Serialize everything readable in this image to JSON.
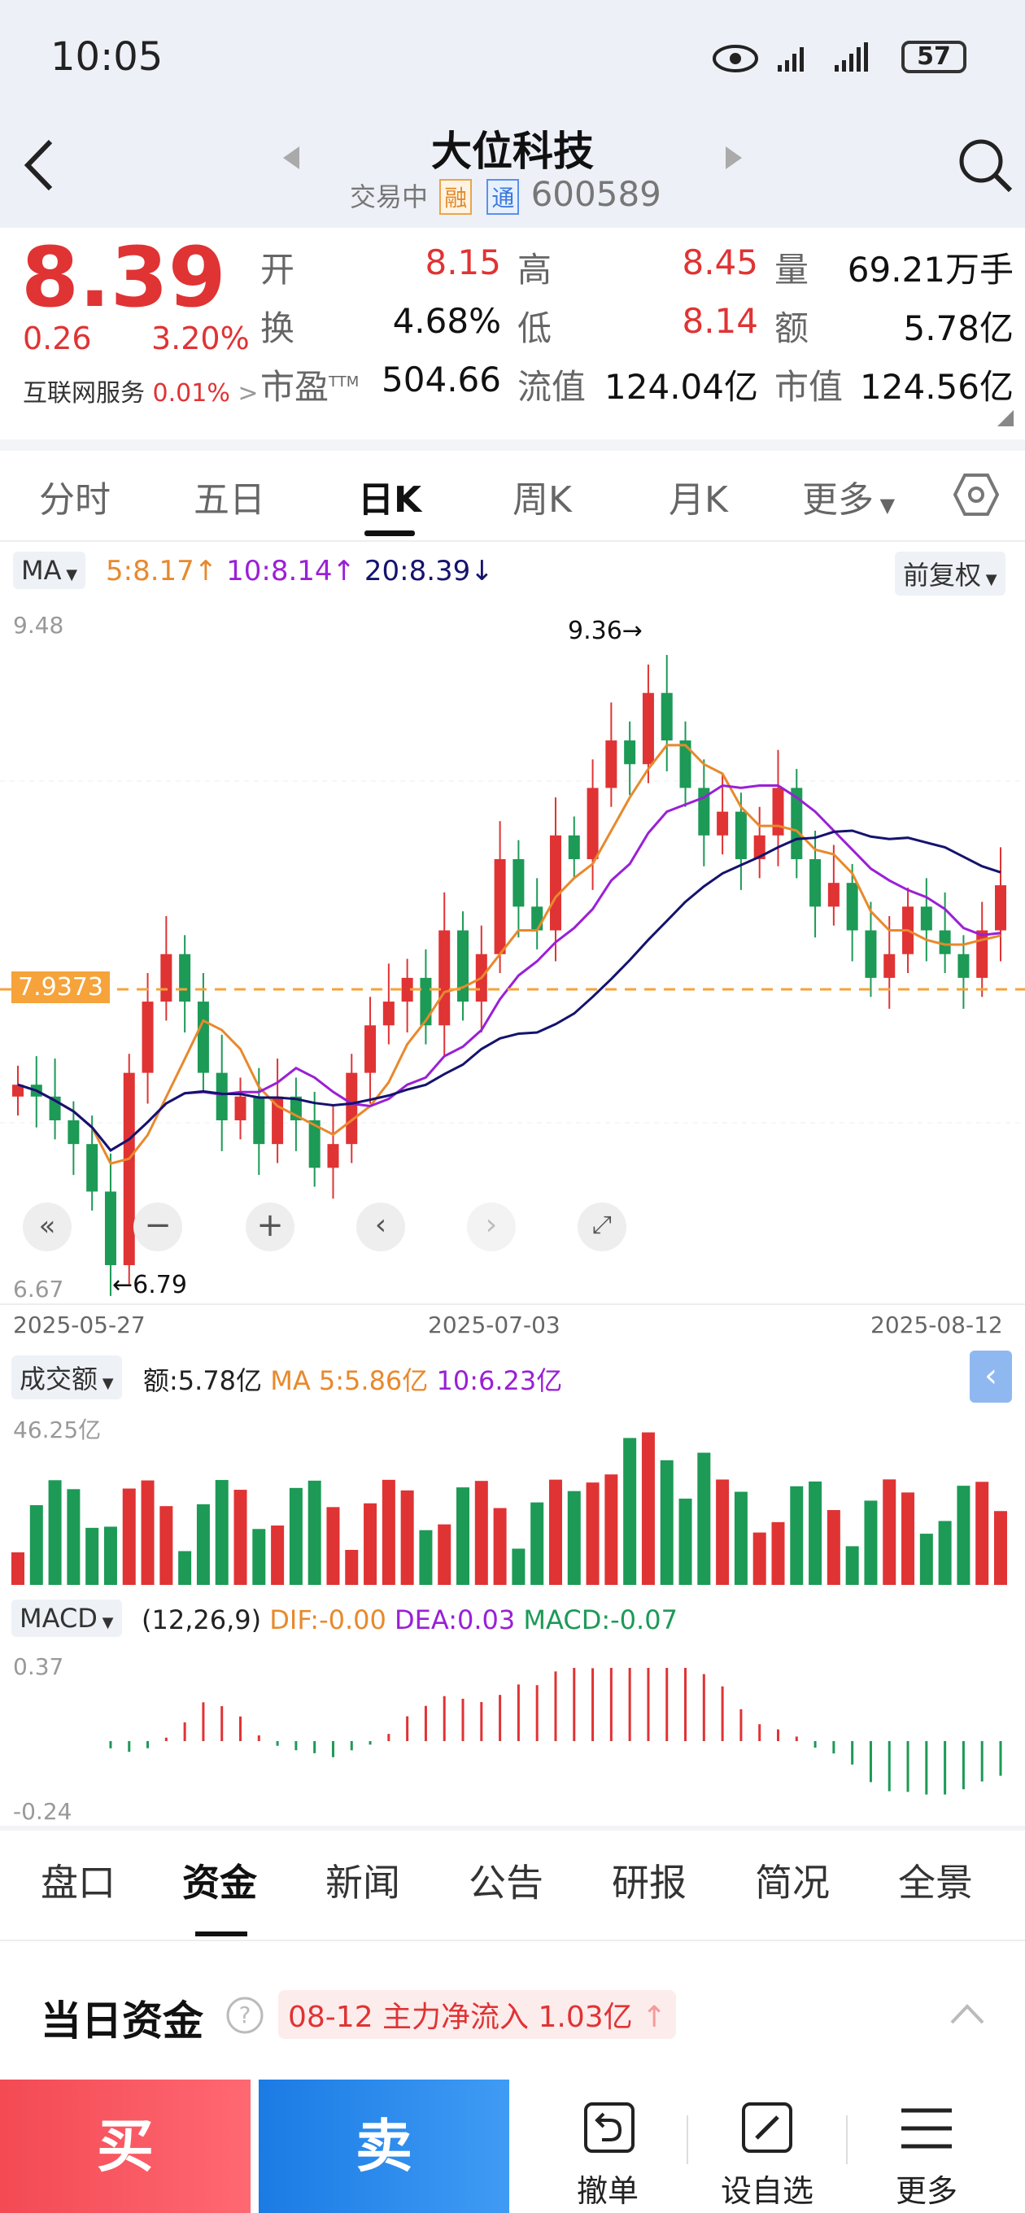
{
  "status_bar": {
    "time": "10:05",
    "battery": "57"
  },
  "header": {
    "title": "大位科技",
    "trade_status": "交易中",
    "tag_rong": "融",
    "tag_tong": "通",
    "code": "600589"
  },
  "quote": {
    "price": "8.39",
    "change": "0.26",
    "change_pct": "3.20%",
    "sector": "互联网服务",
    "sector_pct": "0.01%",
    "fields": {
      "open_label": "开",
      "open": "8.15",
      "high_label": "高",
      "high": "8.45",
      "vol_label": "量",
      "vol": "69.21万手",
      "turnover_label": "换",
      "turnover": "4.68%",
      "low_label": "低",
      "low": "8.14",
      "amount_label": "额",
      "amount": "5.78亿",
      "pe_label": "市盈",
      "pe_sup": "TTM",
      "pe": "504.66",
      "float_label": "流值",
      "float": "124.04亿",
      "mcap_label": "市值",
      "mcap": "124.56亿"
    }
  },
  "period_tabs": [
    "分时",
    "五日",
    "日K",
    "周K",
    "月K",
    "更多"
  ],
  "ma_bar": {
    "selector": "MA",
    "ma5": "5:8.17",
    "ma10": "10:8.14",
    "ma20": "20:8.39",
    "adjust": "前复权"
  },
  "kline": {
    "y_top": "9.48",
    "y_bottom": "6.67",
    "current_line": "7.9373",
    "high_marker": "9.36",
    "low_marker": "6.79",
    "date_start": "2025-05-27",
    "date_mid": "2025-07-03",
    "date_end": "2025-08-12"
  },
  "volume": {
    "selector": "成交额",
    "amount": "额:5.78亿",
    "ma5": "MA 5:5.86亿",
    "ma10": "10:6.23亿",
    "y_top": "46.25亿"
  },
  "macd": {
    "selector": "MACD",
    "params": "(12,26,9)",
    "dif": "DIF:-0.00",
    "dea": "DEA:0.03",
    "macd": "MACD:-0.07",
    "y_top": "0.37",
    "y_bottom": "-0.24"
  },
  "footer_tabs": [
    "盘口",
    "资金",
    "新闻",
    "公告",
    "研报",
    "简况",
    "全景"
  ],
  "fund": {
    "title": "当日资金",
    "info": "08-12 主力净流入 1.03亿"
  },
  "actions": {
    "buy": "买",
    "sell": "卖",
    "cancel": "撤单",
    "watch": "设自选",
    "more": "更多"
  },
  "chart_data": {
    "type": "candlestick",
    "y_range": [
      6.67,
      9.48
    ],
    "candles_approx_close": [
      7.55,
      7.5,
      7.4,
      7.3,
      7.1,
      6.79,
      7.6,
      7.9,
      8.1,
      7.9,
      7.6,
      7.4,
      7.5,
      7.3,
      7.5,
      7.4,
      7.2,
      7.3,
      7.6,
      7.8,
      7.9,
      8.0,
      7.8,
      8.2,
      7.9,
      8.1,
      8.5,
      8.3,
      8.2,
      8.6,
      8.5,
      8.8,
      9.0,
      8.9,
      9.2,
      9.0,
      8.8,
      8.6,
      8.7,
      8.5,
      8.6,
      8.8,
      8.5,
      8.3,
      8.4,
      8.2,
      8.0,
      8.1,
      8.3,
      8.2,
      8.1,
      8.0,
      8.2,
      8.39
    ],
    "markers": {
      "high": 9.36,
      "low": 6.79
    },
    "ref_line": 7.9373
  }
}
